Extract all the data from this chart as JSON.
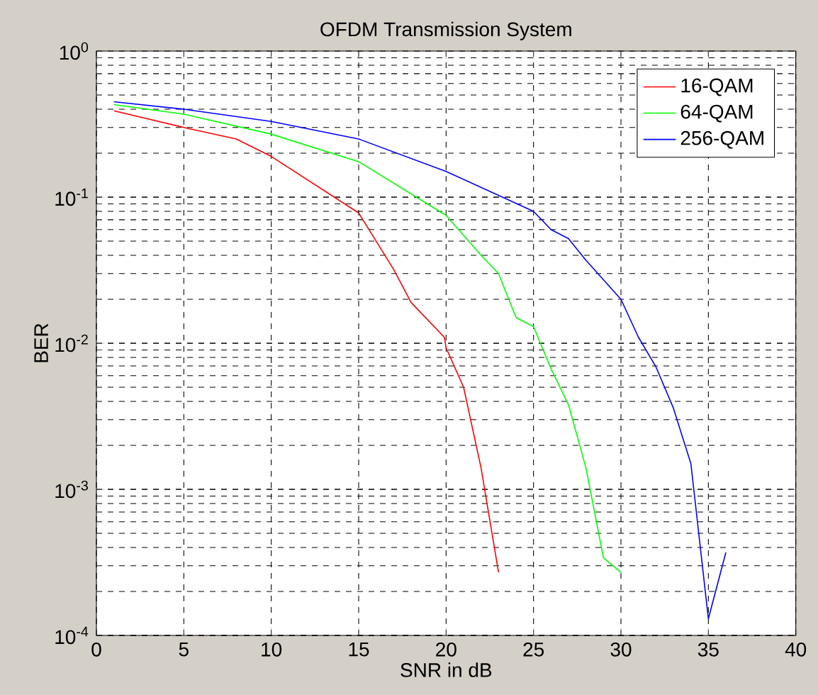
{
  "chart_data": {
    "type": "line",
    "title": "OFDM Transmission System",
    "xlabel": "SNR in dB",
    "ylabel": "BER",
    "log": "y",
    "grid": true,
    "legend": "top right",
    "line_style": "solid",
    "marker": "none",
    "xlim": [
      0,
      40
    ],
    "xticks": [
      0,
      5,
      10,
      15,
      20,
      25,
      30,
      35,
      40
    ],
    "ylim": [
      0.0001,
      1
    ],
    "yticks": [
      {
        "value": 0.0001,
        "label": "10$^{-4}$"
      },
      {
        "value": 0.001,
        "label": "10$^{-3}$"
      },
      {
        "value": 0.01,
        "label": "10$^{-2}$"
      },
      {
        "value": 0.1,
        "label": "10$^{-1}$"
      },
      {
        "value": 1,
        "label": "10$^{0}$"
      }
    ],
    "series": [
      {
        "name": "16-QAM",
        "color": "#ff0000",
        "x": [
          1,
          5,
          8,
          10,
          15,
          17,
          18,
          19.9,
          20,
          21,
          22,
          23
        ],
        "values": [
          0.39,
          0.3,
          0.25,
          0.19,
          0.078,
          0.032,
          0.019,
          0.011,
          0.0093,
          0.005,
          0.0014,
          0.00027
        ]
      },
      {
        "name": "64-QAM",
        "color": "#00ff00",
        "x": [
          1,
          5,
          10,
          15,
          20,
          22,
          23,
          24,
          25,
          26,
          27,
          28,
          29,
          30
        ],
        "values": [
          0.43,
          0.37,
          0.27,
          0.175,
          0.075,
          0.04,
          0.03,
          0.015,
          0.013,
          0.0067,
          0.0038,
          0.0014,
          0.00034,
          0.00027
        ]
      },
      {
        "name": "256-QAM",
        "color": "#0000ff",
        "x": [
          1,
          5,
          10,
          15,
          20,
          25,
          26,
          27,
          28,
          30,
          31,
          32,
          33,
          34,
          35,
          36
        ],
        "values": [
          0.45,
          0.4,
          0.33,
          0.25,
          0.15,
          0.08,
          0.06,
          0.052,
          0.037,
          0.02,
          0.011,
          0.0069,
          0.0036,
          0.0015,
          0.00013,
          0.00037
        ]
      }
    ]
  }
}
